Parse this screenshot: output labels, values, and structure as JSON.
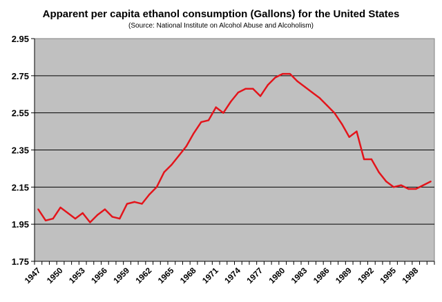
{
  "chart_data": {
    "type": "line",
    "title": "Apparent per capita ethanol consumption (Gallons) for the United States",
    "subtitle": "(Source: National Institute on Alcohol Abuse and Alcoholism)",
    "xlabel": "",
    "ylabel": "",
    "ylim": [
      1.75,
      2.95
    ],
    "yticks": [
      "1.75",
      "1.95",
      "2.15",
      "2.35",
      "2.55",
      "2.75",
      "2.95"
    ],
    "xtick_labels": [
      "1947",
      "1950",
      "1953",
      "1956",
      "1959",
      "1962",
      "1965",
      "1968",
      "1971",
      "1974",
      "1977",
      "1980",
      "1983",
      "1986",
      "1989",
      "1992",
      "1995",
      "1998"
    ],
    "grid": true,
    "legend": "none",
    "colors": {
      "line": "#e3141b",
      "plot_bg": "#c0c0c0",
      "grid": "#000000"
    },
    "x": [
      1947,
      1948,
      1949,
      1950,
      1951,
      1952,
      1953,
      1954,
      1955,
      1956,
      1957,
      1958,
      1959,
      1960,
      1961,
      1962,
      1963,
      1964,
      1965,
      1966,
      1967,
      1968,
      1969,
      1970,
      1971,
      1972,
      1973,
      1974,
      1975,
      1976,
      1977,
      1978,
      1979,
      1980,
      1981,
      1982,
      1983,
      1984,
      1985,
      1986,
      1987,
      1988,
      1989,
      1990,
      1991,
      1992,
      1993,
      1994,
      1995,
      1996,
      1997,
      1998,
      1999,
      2000
    ],
    "series": [
      {
        "name": "Per capita ethanol consumption",
        "values": [
          2.03,
          1.97,
          1.98,
          2.04,
          2.01,
          1.98,
          2.01,
          1.96,
          2.0,
          2.03,
          1.99,
          1.98,
          2.06,
          2.07,
          2.06,
          2.11,
          2.15,
          2.23,
          2.27,
          2.32,
          2.37,
          2.44,
          2.5,
          2.51,
          2.58,
          2.55,
          2.61,
          2.66,
          2.68,
          2.68,
          2.64,
          2.7,
          2.74,
          2.76,
          2.76,
          2.72,
          2.69,
          2.66,
          2.63,
          2.59,
          2.55,
          2.49,
          2.42,
          2.45,
          2.3,
          2.3,
          2.23,
          2.18,
          2.15,
          2.16,
          2.14,
          2.14,
          2.16,
          2.18
        ]
      }
    ]
  }
}
